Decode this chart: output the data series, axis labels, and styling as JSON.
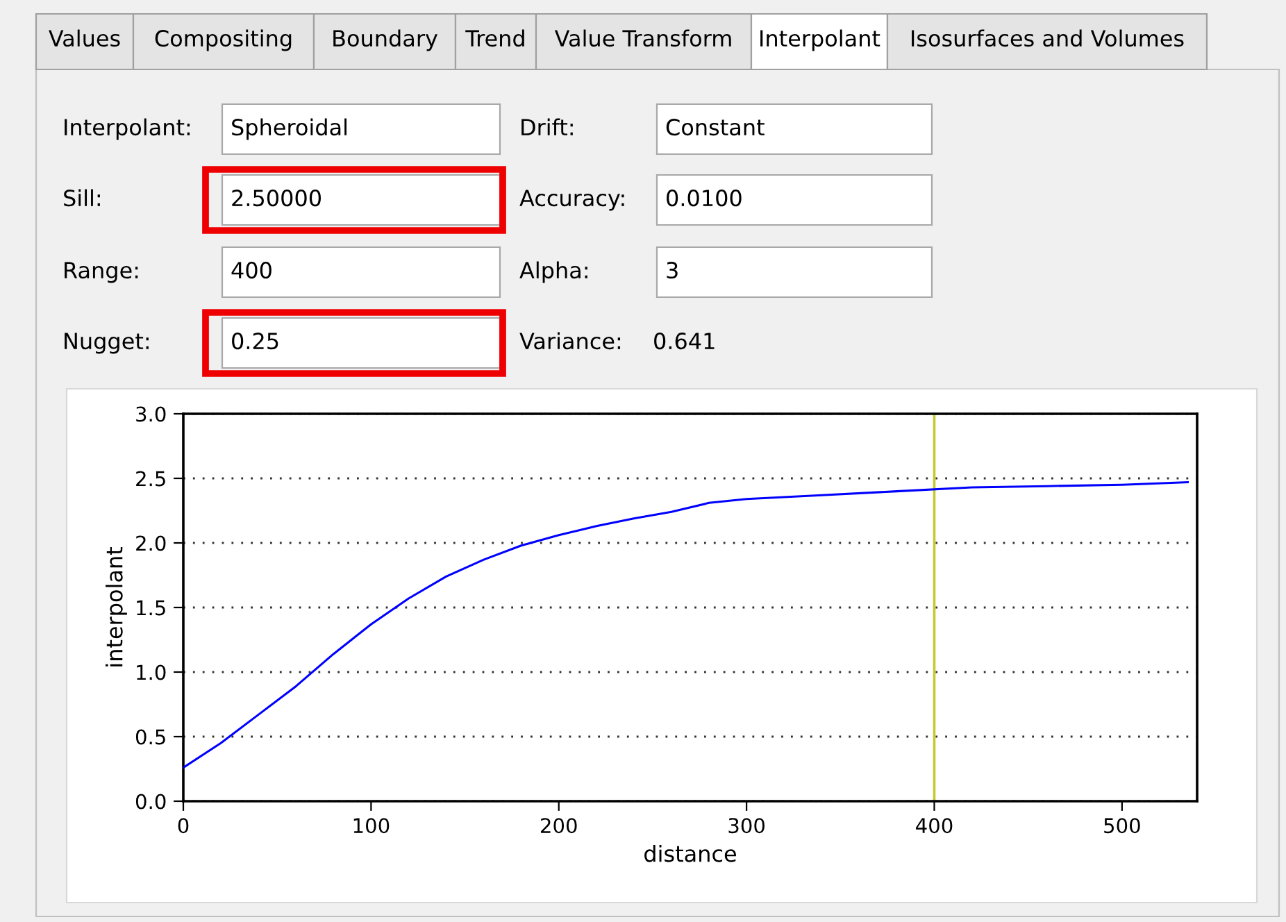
{
  "chart_data": [
    {
      "type": "other",
      "annotations": [
        "Values",
        "Compositing",
        "Boundary",
        "Trend",
        "Value Transform",
        "Interpolant",
        "Isosurfaces and Volumes",
        "Interpolant:",
        "Spheroidal",
        "Drift:",
        "Constant",
        "Sill:",
        "2.50000",
        "Accuracy:",
        "0.0100",
        "Range:",
        "400",
        "Alpha:",
        "3",
        "Nugget:",
        "0.25",
        "Variance:",
        "0.641"
      ]
    },
    {
      "type": "line",
      "xlabel": "distance",
      "ylabel": "interpolant",
      "xlim": [
        0,
        540
      ],
      "xticks": [
        0,
        100,
        200,
        300,
        400,
        500
      ],
      "ylim": [
        0,
        3.0
      ],
      "yticks": [
        {
          "value": 0,
          "label": "0.0"
        },
        {
          "value": 0.5,
          "label": "0.5"
        },
        {
          "value": 1.0,
          "label": "1.0"
        },
        {
          "value": 1.5,
          "label": "1.5"
        },
        {
          "value": 2.0,
          "label": "2.0"
        },
        {
          "value": 2.5,
          "label": "2.5"
        },
        {
          "value": 3.0,
          "label": "3.0"
        }
      ],
      "grid": "y",
      "series": [
        {
          "color": "#0000ff",
          "x": [
            0,
            20,
            40,
            60,
            80,
            100,
            120,
            140,
            160,
            180,
            200,
            220,
            240,
            260,
            280,
            300,
            340,
            380,
            420,
            460,
            500,
            535
          ],
          "values": [
            0.26,
            0.45,
            0.67,
            0.89,
            1.14,
            1.37,
            1.57,
            1.74,
            1.87,
            1.98,
            2.06,
            2.13,
            2.19,
            2.24,
            2.31,
            2.34,
            2.37,
            2.4,
            2.43,
            2.44,
            2.45,
            2.47
          ]
        }
      ],
      "ref_lines": [
        {
          "axis": "x",
          "value": 400,
          "color": "#c8c832"
        }
      ]
    }
  ]
}
